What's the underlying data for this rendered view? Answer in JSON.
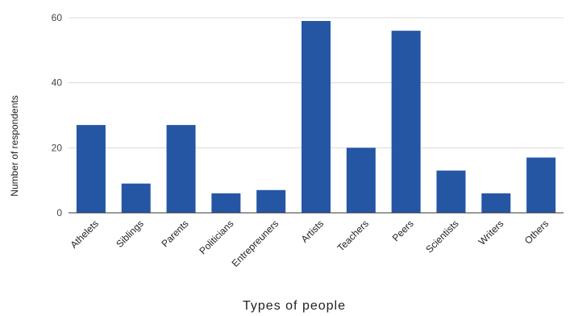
{
  "chart_data": {
    "type": "bar",
    "title": "",
    "xlabel": "Types of people",
    "ylabel": "Number of respondents",
    "categories": [
      "Athelets",
      "Siblings",
      "Parents",
      "Politicians",
      "Entrepreuners",
      "Artists",
      "Teachers",
      "Peers",
      "Scientists",
      "Writers",
      "Others"
    ],
    "values": [
      27,
      9,
      27,
      6,
      7,
      59,
      20,
      56,
      13,
      6,
      17
    ],
    "ylim": [
      0,
      60
    ],
    "yticks": [
      "0",
      "20",
      "40",
      "60"
    ],
    "grid": true,
    "legend": "none",
    "bar_color": "#2456a4"
  }
}
